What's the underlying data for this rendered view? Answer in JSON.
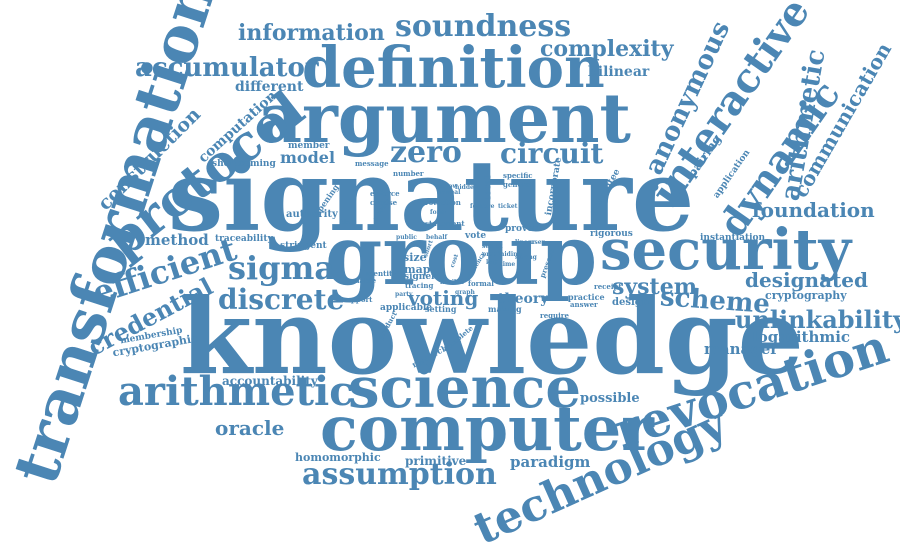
{
  "word_cloud": {
    "color": "#4b86b4",
    "words": [
      "signature",
      "knowledge",
      "group",
      "argument",
      "definition",
      "security",
      "computer",
      "science",
      "transformation",
      "protocol",
      "revocation",
      "technology",
      "interactive",
      "dynamic",
      "anonymous",
      "arithmetic",
      "soundness",
      "information",
      "accumulator",
      "complexity",
      "zero",
      "circuit",
      "sigma",
      "efficient",
      "discrete",
      "voting",
      "scheme",
      "unlinkability",
      "credential",
      "assumption",
      "foundation",
      "designated",
      "communication",
      "system",
      "oracle",
      "culpable",
      "construction",
      "model",
      "method",
      "bilinear",
      "different",
      "computation",
      "logarithmic",
      "manager",
      "theory",
      "cryptography",
      "primitive",
      "paradigm",
      "homomorphic",
      "possible",
      "accountability",
      "member",
      "shortcoming",
      "authority",
      "traceability",
      "stringent",
      "instantiation",
      "application",
      "pairing",
      "membership",
      "cryptographic",
      "size",
      "map",
      "prover",
      "vote",
      "local",
      "incorporate",
      "guarantee",
      "design",
      "practice",
      "specific",
      "general",
      "message",
      "number",
      "enforce",
      "choose",
      "protection",
      "statement",
      "support",
      "applicable",
      "setting",
      "signer",
      "tracing",
      "making",
      "research",
      "complete",
      "formal",
      "receipt",
      "answer",
      "require",
      "present",
      "rigorous",
      "identity",
      "enable",
      "product",
      "privacy",
      "opening",
      "public",
      "behalf",
      "allow",
      "reveal",
      "hidden",
      "secret",
      "proof",
      "key",
      "cost",
      "short",
      "efficiency",
      "linear",
      "user",
      "hiding",
      "strong",
      "time",
      "party",
      "flexible",
      "graph",
      "idea",
      "feature",
      "ticket",
      "form"
    ]
  }
}
